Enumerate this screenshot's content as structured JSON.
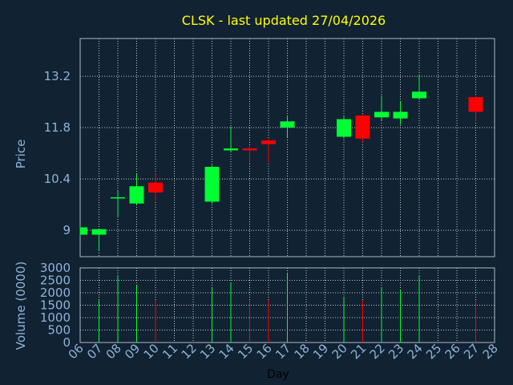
{
  "chart_data": {
    "type": "candlestick",
    "title": "CLSK - last updated 27/04/2026",
    "xlabel": "Day",
    "x_ticks": [
      "06",
      "07",
      "08",
      "09",
      "10",
      "11",
      "12",
      "13",
      "14",
      "15",
      "16",
      "17",
      "18",
      "19",
      "20",
      "21",
      "22",
      "23",
      "24",
      "25",
      "26",
      "27",
      "28"
    ],
    "price": {
      "ylabel": "Price",
      "ylim": [
        8.28,
        14.23
      ],
      "y_ticks": [
        9,
        10.4,
        11.8,
        13.2
      ],
      "grid": true
    },
    "volume": {
      "ylabel": "Volume (0000)",
      "ylim": [
        0,
        3000
      ],
      "y_ticks": [
        0,
        500,
        1000,
        1500,
        2000,
        2500,
        3000
      ],
      "grid": true
    },
    "candles": [
      {
        "day": "06",
        "open": 8.88,
        "high": 9.1,
        "low": 8.85,
        "close": 9.08,
        "volume": 0
      },
      {
        "day": "07",
        "open": 8.88,
        "high": 9.03,
        "low": 8.45,
        "close": 9.03,
        "volume": 1700
      },
      {
        "day": "08",
        "open": 9.88,
        "high": 10.08,
        "low": 9.35,
        "close": 9.9,
        "volume": 2700
      },
      {
        "day": "09",
        "open": 9.73,
        "high": 10.53,
        "low": 9.7,
        "close": 10.2,
        "volume": 2300
      },
      {
        "day": "10",
        "open": 10.3,
        "high": 10.55,
        "low": 9.8,
        "close": 10.03,
        "volume": 1700
      },
      {
        "day": "13",
        "open": 9.78,
        "high": 10.78,
        "low": 9.73,
        "close": 10.73,
        "volume": 2200
      },
      {
        "day": "14",
        "open": 11.18,
        "high": 11.83,
        "low": 11.13,
        "close": 11.23,
        "volume": 2400
      },
      {
        "day": "15",
        "open": 11.23,
        "high": 11.3,
        "low": 10.83,
        "close": 11.18,
        "volume": 1700
      },
      {
        "day": "16",
        "open": 11.45,
        "high": 11.5,
        "low": 10.85,
        "close": 11.35,
        "volume": 1700
      },
      {
        "day": "17",
        "open": 11.8,
        "high": 12.1,
        "low": 11.53,
        "close": 11.97,
        "volume": 2800
      },
      {
        "day": "20",
        "open": 11.55,
        "high": 12.1,
        "low": 11.5,
        "close": 12.03,
        "volume": 1800
      },
      {
        "day": "21",
        "open": 12.13,
        "high": 12.15,
        "low": 11.4,
        "close": 11.5,
        "volume": 1700
      },
      {
        "day": "22",
        "open": 12.08,
        "high": 12.68,
        "low": 12.0,
        "close": 12.23,
        "volume": 2200
      },
      {
        "day": "23",
        "open": 12.05,
        "high": 12.53,
        "low": 11.88,
        "close": 12.23,
        "volume": 2100
      },
      {
        "day": "24",
        "open": 12.6,
        "high": 13.23,
        "low": 12.55,
        "close": 12.78,
        "volume": 2700
      },
      {
        "day": "27",
        "open": 12.63,
        "high": 12.68,
        "low": 11.98,
        "close": 12.23,
        "volume": 1700
      }
    ],
    "colors": {
      "background": "#112233",
      "up": "#00ff33",
      "down": "#ff0000",
      "title": "#ffff00",
      "axis_text": "#8fb4d8",
      "frame": "#b0b8c0",
      "grid": "#c8c8c8"
    }
  }
}
